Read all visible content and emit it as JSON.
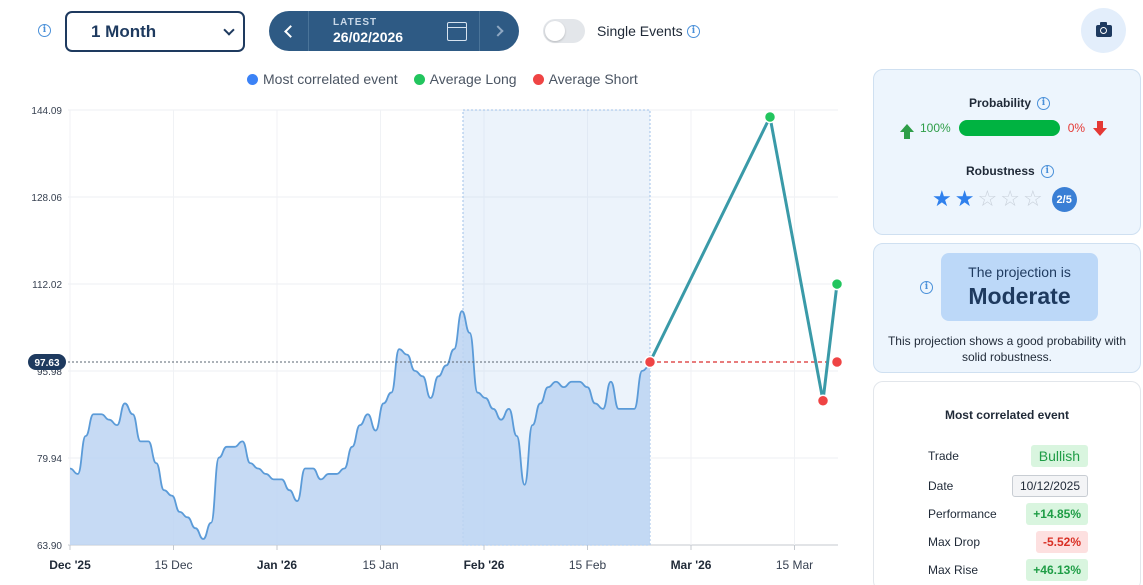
{
  "toolbar": {
    "period_value": "1 Month",
    "latest_label": "LATEST",
    "latest_date": "26/02/2026",
    "single_events_label": "Single Events",
    "single_events_on": false
  },
  "legend": [
    {
      "label": "Most correlated event",
      "color": "#3b82f6"
    },
    {
      "label": "Average Long",
      "color": "#22c55e"
    },
    {
      "label": "Average Short",
      "color": "#ef4444"
    }
  ],
  "colors": {
    "area_fill": "#bcd4f2",
    "area_line": "#5b9bd8",
    "projection_line": "#3a9aa8",
    "current_badge": "#1e3a5f"
  },
  "chart_data": {
    "type": "line",
    "ylim": [
      63.9,
      144.09
    ],
    "yticks": [
      "144.09",
      "128.06",
      "112.02",
      "95.98",
      "79.94",
      "63.90"
    ],
    "xticks": [
      {
        "label": "Dec '25",
        "bold": true
      },
      {
        "label": "15 Dec",
        "bold": false
      },
      {
        "label": "Jan '26",
        "bold": true
      },
      {
        "label": "15 Jan",
        "bold": false
      },
      {
        "label": "Feb '26",
        "bold": true
      },
      {
        "label": "15 Feb",
        "bold": false
      },
      {
        "label": "Mar '26",
        "bold": true
      },
      {
        "label": "15 Mar",
        "bold": false
      }
    ],
    "current_value": "97.63",
    "series": [
      {
        "values": [
          78,
          77,
          84,
          88,
          88,
          87,
          86,
          90,
          88,
          83,
          83,
          79,
          74,
          73,
          70,
          69,
          67,
          65,
          68,
          80,
          82,
          82,
          83,
          79,
          78,
          77,
          76,
          76,
          74,
          72,
          78,
          78,
          76,
          77,
          77,
          78,
          82,
          86,
          88,
          85,
          90,
          92,
          100,
          99,
          96,
          95,
          91,
          95,
          97,
          100,
          107,
          103,
          92,
          91,
          89,
          87,
          89,
          84,
          75,
          86,
          90,
          93,
          94,
          93,
          94,
          94,
          93,
          90,
          89,
          94,
          89,
          89,
          89,
          96,
          97
        ]
      }
    ],
    "projection": {
      "long": [
        97.63,
        142.8,
        90.5,
        112.0
      ],
      "short": [
        97.63,
        97.63
      ]
    }
  },
  "probability": {
    "title": "Probability",
    "long_pct": "100%",
    "short_pct": "0%",
    "long_fraction": 1.0
  },
  "robustness": {
    "title": "Robustness",
    "stars_filled": 2,
    "stars_total": 5,
    "badge": "2/5"
  },
  "projection": {
    "line1": "The projection is",
    "line2": "Moderate",
    "description": "This projection shows a good probability with solid robustness."
  },
  "correlated": {
    "title": "Most correlated event",
    "rows": [
      {
        "label": "Trade",
        "value": "Bullish"
      },
      {
        "label": "Date",
        "value": "10/12/2025"
      },
      {
        "label": "Performance",
        "value": "+14.85%"
      },
      {
        "label": "Max Drop",
        "value": "-5.52%"
      },
      {
        "label": "Max Rise",
        "value": "+46.13%"
      }
    ]
  }
}
